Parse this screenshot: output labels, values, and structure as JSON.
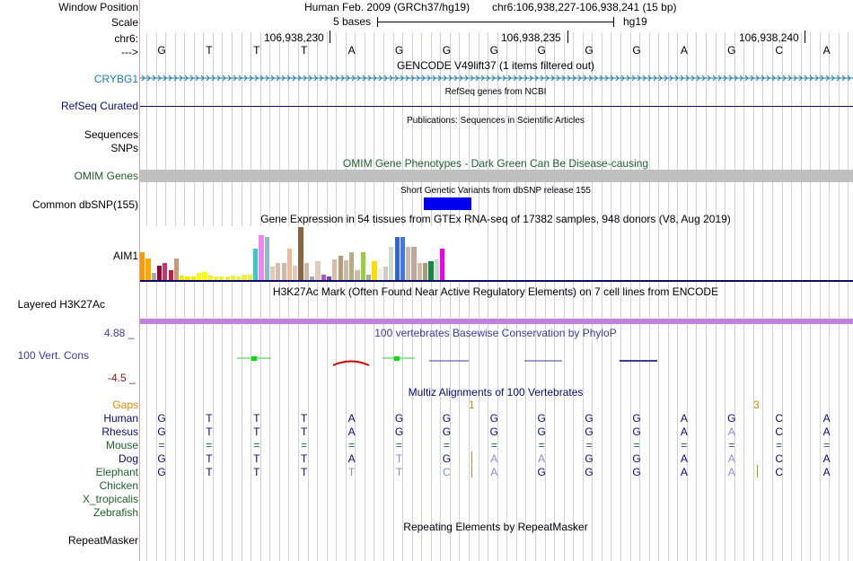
{
  "header": {
    "window_position_label": "Window Position",
    "scale_label": "Scale",
    "chrom_label": "chr6:",
    "arrow_label": "--->",
    "assembly_text": "Human Feb. 2009 (GRCh37/hg19)",
    "position_text": "chr6:106,938,227-106,938,241 (15 bp)",
    "scale_bases": "5 bases",
    "scale_db": "hg19",
    "ruler_ticks": [
      "106,938,230",
      "106,938,235",
      "106,938,240"
    ]
  },
  "sequence": [
    "G",
    "T",
    "T",
    "T",
    "A",
    "G",
    "G",
    "G",
    "G",
    "G",
    "G",
    "A",
    "G",
    "C",
    "A"
  ],
  "tracks": {
    "gencode": {
      "title": "GENCODE V49lift37 (1 items filtered out)",
      "gene_label": "CRYBG1"
    },
    "refseq": {
      "title": "RefSeq genes from NCBI",
      "label": "RefSeq Curated"
    },
    "publications": {
      "title": "Publications: Sequences in Scientific Articles",
      "label_line1": "Sequences",
      "label_line2": "SNPs"
    },
    "omim": {
      "title": "OMIM Gene Phenotypes - Dark Green Can Be Disease-causing",
      "label": "OMIM Genes"
    },
    "dbsnp": {
      "title": "Short Genetic Variants from dbSNP release 155",
      "label": "Common dbSNP(155)"
    },
    "gtex": {
      "title": "Gene Expression in 54 tissues from GTEx RNA-seq of 17382 samples, 948 donors (V8, Aug 2019)",
      "label": "AIM1"
    },
    "h3k27ac": {
      "title": "H3K27Ac Mark (Often Found Near Active Regulatory Elements) on 7 cell lines from ENCODE",
      "label": "Layered H3K27Ac"
    },
    "phylop": {
      "title": "100 vertebrates Basewise Conservation by PhyloP",
      "label": "100 Vert. Cons",
      "max_label": "4.88 _",
      "min_label": "-4.5 _"
    },
    "multiz": {
      "title": "Multiz Alignments of 100 Vertebrates",
      "gaps_label": "Gaps",
      "gap_counts": [
        "1",
        "3"
      ],
      "species": [
        {
          "name": "Human",
          "seq": [
            "G",
            "T",
            "T",
            "T",
            "A",
            "G",
            "G",
            "G",
            "G",
            "G",
            "G",
            "A",
            "G",
            "C",
            "A"
          ]
        },
        {
          "name": "Rhesus",
          "seq": [
            "G",
            "T",
            "T",
            "T",
            "A",
            "G",
            "G",
            "G",
            "G",
            "G",
            "G",
            "A",
            "A",
            "C",
            "A"
          ]
        },
        {
          "name": "Mouse",
          "seq": [
            "=",
            "=",
            "=",
            "=",
            "=",
            "=",
            "=",
            "=",
            "=",
            "=",
            "=",
            "=",
            "=",
            "=",
            "="
          ]
        },
        {
          "name": "Dog",
          "seq": [
            "G",
            "T",
            "T",
            "T",
            "A",
            "T",
            "G",
            "A",
            "A",
            "G",
            "G",
            "A",
            "A",
            "C",
            "A"
          ]
        },
        {
          "name": "Elephant",
          "seq": [
            "G",
            "T",
            "T",
            "T",
            "T",
            "T",
            "C",
            "A",
            "G",
            "G",
            "G",
            "A",
            "A",
            "C",
            "A"
          ]
        },
        {
          "name": "Chicken",
          "seq": []
        },
        {
          "name": "X_tropicalis",
          "seq": []
        },
        {
          "name": "Zebrafish",
          "seq": []
        }
      ]
    },
    "repeatmasker": {
      "title": "Repeating Elements by RepeatMasker",
      "label": "RepeatMasker"
    }
  },
  "gtex_bars": [
    {
      "v": 31,
      "c": "#ff9900"
    },
    {
      "v": 24,
      "c": "#ffaa00"
    },
    {
      "v": 8,
      "c": "#aaaaaa"
    },
    {
      "v": 16,
      "c": "#990033"
    },
    {
      "v": 19,
      "c": "#cc3366"
    },
    {
      "v": 11,
      "c": "#bb2244"
    },
    {
      "v": 24,
      "c": "#cc9977"
    },
    {
      "v": 5,
      "c": "#eeee00"
    },
    {
      "v": 4,
      "c": "#eeee00"
    },
    {
      "v": 4,
      "c": "#eeee00"
    },
    {
      "v": 8,
      "c": "#ffff00"
    },
    {
      "v": 9,
      "c": "#ffff00"
    },
    {
      "v": 5,
      "c": "#eeee44"
    },
    {
      "v": 4,
      "c": "#eeee44"
    },
    {
      "v": 4,
      "c": "#eeee44"
    },
    {
      "v": 4,
      "c": "#eeee44"
    },
    {
      "v": 5,
      "c": "#eeee44"
    },
    {
      "v": 4,
      "c": "#eeee44"
    },
    {
      "v": 6,
      "c": "#eeee44"
    },
    {
      "v": 6,
      "c": "#eeee44"
    },
    {
      "v": 35,
      "c": "#33cccc"
    },
    {
      "v": 50,
      "c": "#ee88ee"
    },
    {
      "v": 48,
      "c": "#88bbcc"
    },
    {
      "v": 15,
      "c": "#ddccbb"
    },
    {
      "v": 19,
      "c": "#ddbbaa"
    },
    {
      "v": 19,
      "c": "#ccbbaa"
    },
    {
      "v": 35,
      "c": "#eebb99"
    },
    {
      "v": 16,
      "c": "#ddccbb"
    },
    {
      "v": 59,
      "c": "#886644"
    },
    {
      "v": 19,
      "c": "#ccbbaa"
    },
    {
      "v": 4,
      "c": "#aaaaaa"
    },
    {
      "v": 21,
      "c": "#ddccbb"
    },
    {
      "v": 6,
      "c": "#aa55cc"
    },
    {
      "v": 4,
      "c": "#7744aa"
    },
    {
      "v": 23,
      "c": "#ddbbaa"
    },
    {
      "v": 27,
      "c": "#bb9977"
    },
    {
      "v": 22,
      "c": "#ccbbaa"
    },
    {
      "v": 31,
      "c": "#bbaa88"
    },
    {
      "v": 11,
      "c": "#ccbbaa"
    },
    {
      "v": 31,
      "c": "#99cc44"
    },
    {
      "v": 6,
      "c": "#aaaaaa"
    },
    {
      "v": 21,
      "c": "#ffdd00"
    },
    {
      "v": 13,
      "c": "#eeeeee"
    },
    {
      "v": 15,
      "c": "#cccccc"
    },
    {
      "v": 37,
      "c": "#ccddcc"
    },
    {
      "v": 48,
      "c": "#3366cc"
    },
    {
      "v": 48,
      "c": "#4477dd"
    },
    {
      "v": 37,
      "c": "#ccbbaa"
    },
    {
      "v": 37,
      "c": "#bbaa99"
    },
    {
      "v": 19,
      "c": "#ccbbaa"
    },
    {
      "v": 19,
      "c": "#aa9977"
    },
    {
      "v": 21,
      "c": "#118844"
    },
    {
      "v": 23,
      "c": "#ccddcc"
    },
    {
      "v": 35,
      "c": "#ee00ee"
    }
  ],
  "colors": {
    "gene_blue": "#1b7ea3",
    "navy": "#0b0b6e",
    "omim_green": "#20602a",
    "omim_bar": "#c0c0c0",
    "dbsnp_blue": "#0000ee",
    "h3k27ac_purple": "#c080e0",
    "phylop_blue": "#3b3b9b",
    "phylop_red": "#8b1a1a",
    "gaps_orange": "#dd8800",
    "mismatch_gray": "#8c8cc8"
  }
}
